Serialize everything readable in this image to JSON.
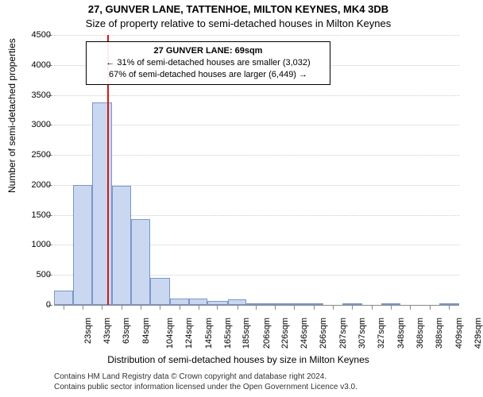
{
  "title": "27, GUNVER LANE, TATTENHOE, MILTON KEYNES, MK4 3DB",
  "subtitle": "Size of property relative to semi-detached houses in Milton Keynes",
  "ylabel": "Number of semi-detached properties",
  "xlabel": "Distribution of semi-detached houses by size in Milton Keynes",
  "footnote_line1": "Contains HM Land Registry data © Crown copyright and database right 2024.",
  "footnote_line2": "Contains public sector information licensed under the Open Government Licence v3.0.",
  "info_box": {
    "line1": "27 GUNVER LANE: 69sqm",
    "line2": "← 31% of semi-detached houses are smaller (3,032)",
    "line3": "67% of semi-detached houses are larger (6,449) →"
  },
  "chart": {
    "type": "histogram",
    "background_color": "#ffffff",
    "grid_color": "#cccccc",
    "axis_color": "#888888",
    "bar_fill": "#c9d8f0",
    "bar_stroke": "#7a97c9",
    "marker_color": "#d11919",
    "marker_x_value": 69,
    "ylim": [
      0,
      4500
    ],
    "ytick_step": 500,
    "yticks": [
      0,
      500,
      1000,
      1500,
      2000,
      2500,
      3000,
      3500,
      4000,
      4500
    ],
    "xlim": [
      13,
      440
    ],
    "xtick_labels": [
      "23sqm",
      "43sqm",
      "63sqm",
      "84sqm",
      "104sqm",
      "124sqm",
      "145sqm",
      "165sqm",
      "185sqm",
      "206sqm",
      "226sqm",
      "246sqm",
      "266sqm",
      "287sqm",
      "307sqm",
      "327sqm",
      "348sqm",
      "368sqm",
      "388sqm",
      "409sqm",
      "429sqm"
    ],
    "xtick_values": [
      23,
      43,
      63,
      84,
      104,
      124,
      145,
      165,
      185,
      206,
      226,
      246,
      266,
      287,
      307,
      327,
      348,
      368,
      388,
      409,
      429
    ],
    "bars": [
      {
        "x0": 13,
        "x1": 33,
        "count": 240
      },
      {
        "x0": 33,
        "x1": 53,
        "count": 2000
      },
      {
        "x0": 53,
        "x1": 74,
        "count": 3370
      },
      {
        "x0": 74,
        "x1": 94,
        "count": 1980
      },
      {
        "x0": 94,
        "x1": 114,
        "count": 1430
      },
      {
        "x0": 114,
        "x1": 135,
        "count": 450
      },
      {
        "x0": 135,
        "x1": 155,
        "count": 110
      },
      {
        "x0": 155,
        "x1": 175,
        "count": 110
      },
      {
        "x0": 175,
        "x1": 196,
        "count": 60
      },
      {
        "x0": 196,
        "x1": 216,
        "count": 90
      },
      {
        "x0": 216,
        "x1": 236,
        "count": 8
      },
      {
        "x0": 236,
        "x1": 256,
        "count": 5
      },
      {
        "x0": 256,
        "x1": 277,
        "count": 8
      },
      {
        "x0": 277,
        "x1": 297,
        "count": 3
      },
      {
        "x0": 297,
        "x1": 317,
        "count": 0
      },
      {
        "x0": 317,
        "x1": 338,
        "count": 2
      },
      {
        "x0": 338,
        "x1": 358,
        "count": 0
      },
      {
        "x0": 358,
        "x1": 378,
        "count": 2
      },
      {
        "x0": 378,
        "x1": 399,
        "count": 0
      },
      {
        "x0": 399,
        "x1": 419,
        "count": 0
      },
      {
        "x0": 419,
        "x1": 440,
        "count": 2
      }
    ],
    "label_fontsize": 11,
    "title_fontsize": 13
  }
}
